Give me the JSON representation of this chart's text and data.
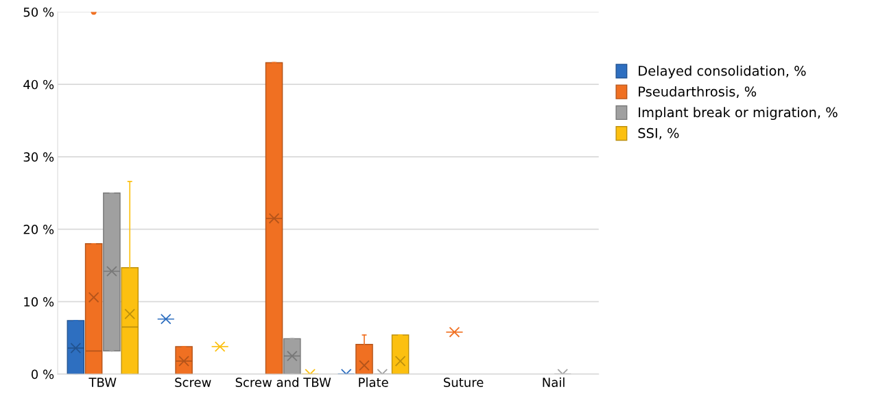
{
  "chart_data": {
    "type": "box",
    "categories": [
      "TBW",
      "Screw",
      "Screw and TBW",
      "Plate",
      "Suture",
      "Nail"
    ],
    "ylim": [
      0,
      50
    ],
    "yticks": [
      {
        "value": 0,
        "label": "0 %"
      },
      {
        "value": 10,
        "label": "10 %"
      },
      {
        "value": 20,
        "label": "20 %"
      },
      {
        "value": 30,
        "label": "30 %"
      },
      {
        "value": 40,
        "label": "40 %"
      },
      {
        "value": 50,
        "label": "50 %"
      }
    ],
    "grid": "y",
    "legend": "right",
    "series": [
      {
        "name": "Delayed consolidation, %",
        "color": "#2e6fc0",
        "boxes": [
          {
            "low": 0,
            "q1": 0,
            "median": 3.6,
            "q3": 7.4,
            "high": 7.4,
            "mean": 3.6
          },
          {
            "low": 7.6,
            "q1": 7.6,
            "median": 7.6,
            "q3": 7.6,
            "high": 7.6,
            "mean": 7.6
          },
          null,
          {
            "low": 0,
            "q1": 0,
            "median": 0,
            "q3": 0,
            "high": 0,
            "mean": 0
          },
          null,
          null
        ]
      },
      {
        "name": "Pseudarthrosis, %",
        "color": "#f07022",
        "boxes": [
          {
            "low": 0,
            "q1": 0,
            "median": 3.2,
            "q3": 18,
            "high": 18,
            "mean": 10.6,
            "outliers": [
              50
            ]
          },
          {
            "low": 0,
            "q1": 0,
            "median": 1.8,
            "q3": 3.8,
            "high": 3.8,
            "mean": 1.8
          },
          {
            "low": 0,
            "q1": 0,
            "median": 21.5,
            "q3": 43,
            "high": 43,
            "mean": 21.5
          },
          {
            "low": 0,
            "q1": 0,
            "median": 0,
            "q3": 4.1,
            "high": 5.4,
            "mean": 1.2
          },
          {
            "low": 5.8,
            "q1": 5.8,
            "median": 5.8,
            "q3": 5.8,
            "high": 5.8,
            "mean": 5.8
          },
          null
        ]
      },
      {
        "name": "Implant break or migration, %",
        "color": "#a0a0a0",
        "boxes": [
          {
            "low": 3.2,
            "q1": 3.2,
            "median": 14.2,
            "q3": 25,
            "high": 25,
            "mean": 14.2
          },
          null,
          {
            "low": 0,
            "q1": 0,
            "median": 2.5,
            "q3": 4.9,
            "high": 4.9,
            "mean": 2.5
          },
          {
            "low": 0,
            "q1": 0,
            "median": 0,
            "q3": 0,
            "high": 0,
            "mean": 0
          },
          null,
          {
            "low": 0,
            "q1": 0,
            "median": 0,
            "q3": 0,
            "high": 0,
            "mean": 0
          }
        ]
      },
      {
        "name": "SSI, %",
        "color": "#fcc010",
        "boxes": [
          {
            "low": 0,
            "q1": 0,
            "median": 6.5,
            "q3": 14.7,
            "high": 26.6,
            "mean": 8.3
          },
          {
            "low": 3.8,
            "q1": 3.8,
            "median": 3.8,
            "q3": 3.8,
            "high": 3.8,
            "mean": 3.8
          },
          {
            "low": 0,
            "q1": 0,
            "median": 0,
            "q3": 0,
            "high": 0,
            "mean": 0
          },
          {
            "low": 0,
            "q1": 0,
            "median": 0,
            "q3": 5.4,
            "high": 5.4,
            "mean": 1.8
          },
          null,
          null
        ]
      }
    ]
  }
}
